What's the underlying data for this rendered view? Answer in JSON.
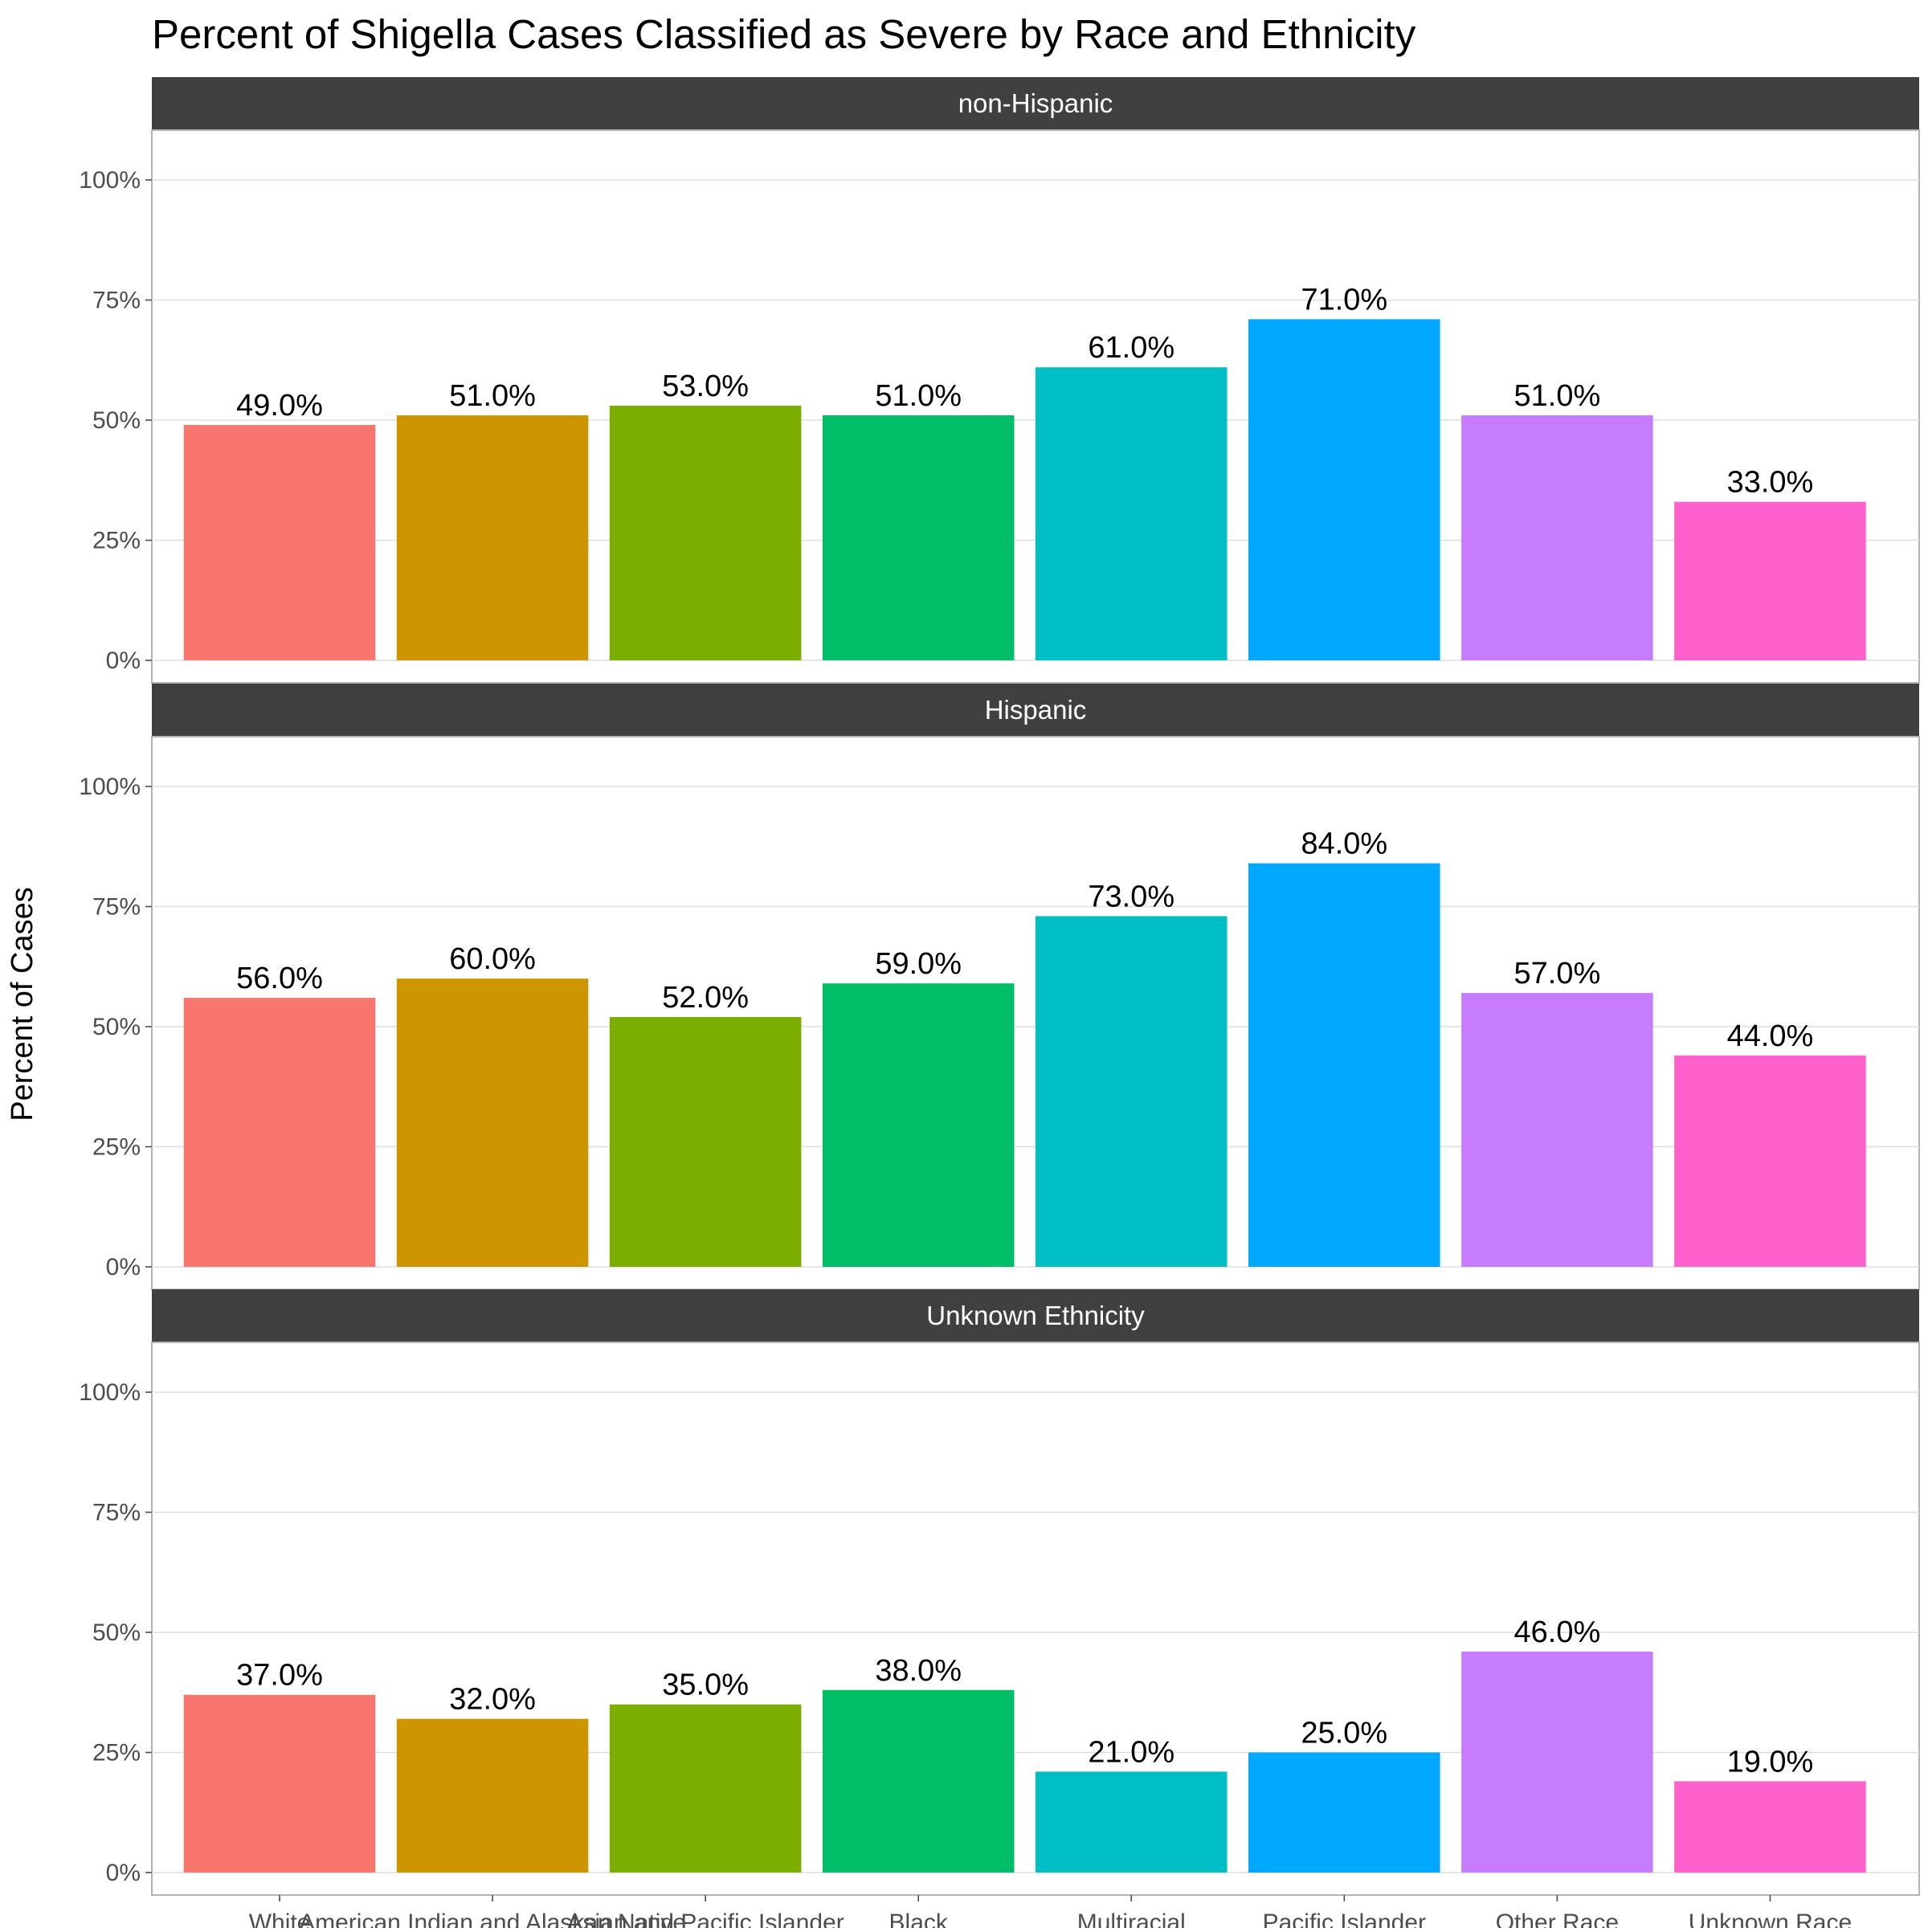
{
  "chart_data": {
    "type": "bar",
    "title": "Percent of Shigella Cases Classified as Severe by Race and Ethnicity",
    "xlabel": "",
    "ylabel": "Percent of Cases",
    "ylim": [
      0,
      100
    ],
    "yticks": [
      "0%",
      "25%",
      "50%",
      "75%",
      "100%"
    ],
    "ytick_values": [
      0,
      25,
      50,
      75,
      100
    ],
    "grid": true,
    "legend": "none",
    "categories": [
      "White",
      "American Indian and Alaskan Native",
      "Asian and Pacific Islander",
      "Black",
      "Multiracial",
      "Pacific Islander",
      "Other Race",
      "Unknown Race"
    ],
    "colors": [
      "#F8766D",
      "#CD9600",
      "#7CAE00",
      "#00BE67",
      "#00BFC4",
      "#00A9FF",
      "#C77CFF",
      "#FF61CC"
    ],
    "panels": [
      {
        "name": "non-Hispanic",
        "values": [
          49,
          51,
          53,
          51,
          61,
          71,
          51,
          33
        ],
        "labels": [
          "49.0%",
          "51.0%",
          "53.0%",
          "51.0%",
          "61.0%",
          "71.0%",
          "51.0%",
          "33.0%"
        ]
      },
      {
        "name": "Hispanic",
        "values": [
          56,
          60,
          52,
          59,
          73,
          84,
          57,
          44
        ],
        "labels": [
          "56.0%",
          "60.0%",
          "52.0%",
          "59.0%",
          "73.0%",
          "84.0%",
          "57.0%",
          "44.0%"
        ]
      },
      {
        "name": "Unknown Ethnicity",
        "values": [
          37,
          32,
          35,
          38,
          21,
          25,
          46,
          19
        ],
        "labels": [
          "37.0%",
          "32.0%",
          "35.0%",
          "38.0%",
          "21.0%",
          "25.0%",
          "46.0%",
          "19.0%"
        ]
      }
    ]
  }
}
